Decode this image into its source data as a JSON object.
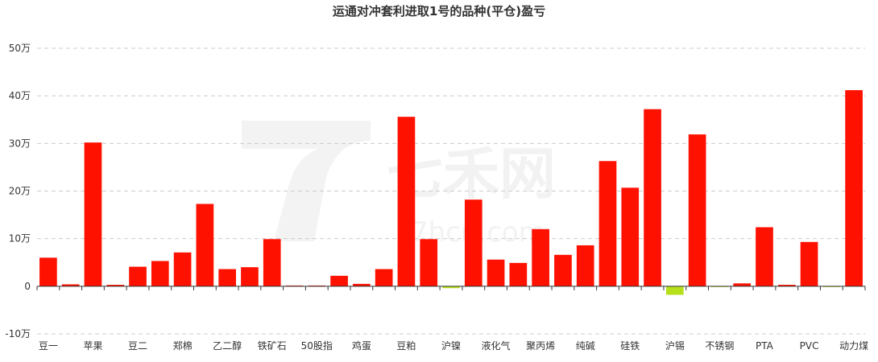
{
  "chart_data": {
    "type": "bar",
    "title": "运通对冲套利进取1号的品种(平仓)盈亏",
    "categories": [
      "豆一",
      "",
      "苹果",
      "",
      "豆二",
      "",
      "郑棉",
      "",
      "乙二醇",
      "",
      "铁矿石",
      "",
      "50股指",
      "",
      "鸡蛋",
      "",
      "豆粕",
      "",
      "沪镍",
      "",
      "液化气",
      "",
      "聚丙烯",
      "",
      "纯碱",
      "",
      "硅铁",
      "",
      "沪锡",
      "",
      "不锈钢",
      "",
      "PTA",
      "",
      "PVC",
      "",
      "动力煤"
    ],
    "values": [
      6,
      0.4,
      30.2,
      0.3,
      4.1,
      5.3,
      7.1,
      17.3,
      3.6,
      4.0,
      9.9,
      0.15,
      0.15,
      2.2,
      0.5,
      3.6,
      35.6,
      9.9,
      -0.4,
      18.2,
      5.6,
      4.9,
      12.0,
      6.6,
      8.6,
      26.3,
      20.7,
      37.2,
      -1.8,
      31.9,
      -0.15,
      0.6,
      12.4,
      0.3,
      9.3,
      -0.15,
      41.2
    ],
    "ylim": [
      -10,
      50
    ],
    "yticks": [
      -10,
      0,
      10,
      20,
      30,
      40,
      50
    ],
    "ytick_labels": [
      "-10万",
      "0",
      "10万",
      "20万",
      "30万",
      "40万",
      "50万"
    ],
    "grid": true,
    "xlabel": "",
    "ylabel": "",
    "colors": {
      "positive": "#ff1100",
      "negative": "#b6e11a"
    }
  },
  "watermark": {
    "brand": "七禾网",
    "url": "7hcn.com"
  }
}
